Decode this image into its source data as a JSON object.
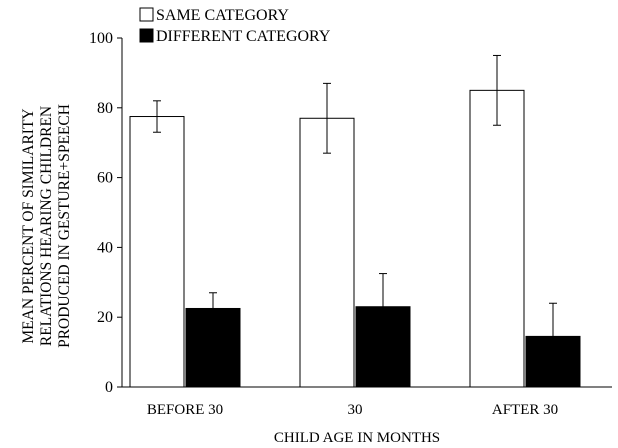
{
  "chart_data": {
    "type": "bar",
    "categories": [
      "BEFORE 30",
      "30",
      "AFTER 30"
    ],
    "series": [
      {
        "name": "SAME CATEGORY",
        "values": [
          77.5,
          77,
          85
        ],
        "error": [
          4.5,
          10,
          10
        ],
        "fill": "#ffffff"
      },
      {
        "name": "DIFFERENT CATEGORY",
        "values": [
          22.5,
          23,
          14.5
        ],
        "error": [
          4.5,
          9.5,
          9.5
        ],
        "fill": "#000000"
      }
    ],
    "xlabel": "CHILD AGE IN MONTHS",
    "ylabel_lines": [
      "MEAN PERCENT OF SIMILARITY",
      "RELATIONS HEARING CHILDREN",
      "PRODUCED IN GESTURE+SPEECH"
    ],
    "ylim": [
      0,
      100
    ],
    "yticks": [
      0,
      20,
      40,
      60,
      80,
      100
    ],
    "grid": false,
    "legend_position": "top-left"
  }
}
